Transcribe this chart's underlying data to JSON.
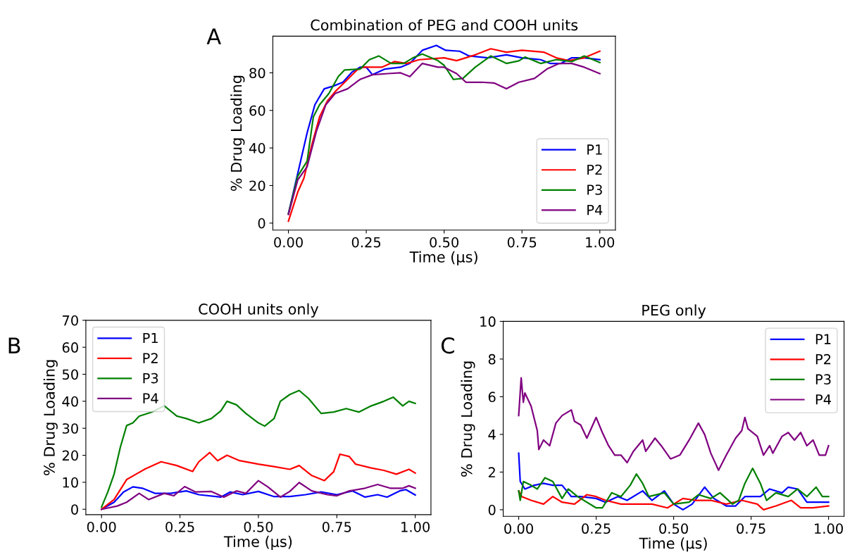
{
  "chart_data": [
    {
      "type": "line",
      "title": "Combination of PEG and COOH units",
      "xlabel": "Time (µs)",
      "ylabel": "% Drug Loading",
      "annotations": [
        "A"
      ],
      "xlim": [
        -0.05,
        1.05
      ],
      "ylim": [
        -3.7,
        99.5
      ],
      "xticks": [
        {
          "value": 0,
          "label": "0.00"
        },
        {
          "value": 0.25,
          "label": "0.25"
        },
        {
          "value": 0.5,
          "label": "0.50"
        },
        {
          "value": 0.75,
          "label": "0.75"
        },
        {
          "value": 1,
          "label": "1.00"
        }
      ],
      "yticks": [
        0,
        20,
        40,
        60,
        80
      ],
      "grid": false,
      "legend": "bottom right",
      "series": [
        {
          "name": "P1",
          "color": "#0000ff",
          "x": [
            0,
            0.03,
            0.06,
            0.085,
            0.115,
            0.145,
            0.175,
            0.205,
            0.23,
            0.25,
            0.27,
            0.31,
            0.36,
            0.39,
            0.43,
            0.475,
            0.505,
            0.55,
            0.58,
            0.64,
            0.7,
            0.75,
            0.81,
            0.84,
            0.875,
            0.91,
            0.95,
            1.0
          ],
          "values": [
            5,
            26.5,
            48,
            63,
            71.5,
            73,
            75,
            80.5,
            83,
            83,
            79,
            82,
            83,
            85,
            92,
            94.6,
            92,
            91.5,
            89,
            88,
            89.6,
            88,
            87,
            85,
            85,
            88,
            88,
            87
          ]
        },
        {
          "name": "P2",
          "color": "#ff0000",
          "x": [
            0,
            0.03,
            0.05,
            0.075,
            0.1,
            0.125,
            0.15,
            0.19,
            0.22,
            0.24,
            0.3,
            0.34,
            0.38,
            0.42,
            0.5,
            0.54,
            0.6,
            0.65,
            0.7,
            0.75,
            0.82,
            0.86,
            0.9,
            0.95,
            1.0
          ],
          "values": [
            1,
            16.5,
            24,
            41.5,
            56.5,
            65,
            70,
            76.5,
            81.5,
            83,
            83,
            86,
            85,
            87,
            88,
            86.5,
            89.6,
            92.8,
            91,
            92,
            91,
            88,
            86.5,
            88,
            91.5
          ]
        },
        {
          "name": "P3",
          "color": "#008000",
          "x": [
            0,
            0.03,
            0.06,
            0.08,
            0.1,
            0.13,
            0.16,
            0.18,
            0.23,
            0.26,
            0.29,
            0.33,
            0.37,
            0.4,
            0.43,
            0.48,
            0.5,
            0.53,
            0.56,
            0.6,
            0.65,
            0.7,
            0.74,
            0.76,
            0.81,
            0.86,
            0.91,
            0.95,
            1.0
          ],
          "values": [
            5,
            25,
            33,
            56.5,
            63,
            69,
            78,
            81.5,
            82,
            87,
            89,
            85,
            85,
            88,
            90,
            86.5,
            84,
            76.5,
            77,
            83,
            89,
            85,
            86.4,
            88.4,
            85,
            87,
            86,
            89,
            85.5
          ]
        },
        {
          "name": "P4",
          "color": "#800080",
          "x": [
            0,
            0.03,
            0.06,
            0.09,
            0.12,
            0.15,
            0.19,
            0.23,
            0.27,
            0.32,
            0.36,
            0.39,
            0.43,
            0.48,
            0.5,
            0.54,
            0.57,
            0.62,
            0.66,
            0.7,
            0.74,
            0.79,
            0.83,
            0.87,
            0.91,
            0.95,
            1.0
          ],
          "values": [
            4.6,
            23,
            30,
            49,
            63,
            69,
            71.5,
            76.5,
            79,
            79.6,
            80,
            78,
            85,
            83,
            83,
            79.6,
            75,
            75,
            74.6,
            71.5,
            75,
            77,
            82,
            85,
            85,
            83,
            79.6
          ]
        }
      ]
    },
    {
      "type": "line",
      "title": "COOH units only",
      "xlabel": "Time (µs)",
      "ylabel": "% Drug Loading",
      "annotations": [
        "B"
      ],
      "xlim": [
        -0.05,
        1.05
      ],
      "ylim": [
        -2,
        70
      ],
      "xticks": [
        {
          "value": 0,
          "label": "0.00"
        },
        {
          "value": 0.25,
          "label": "0.25"
        },
        {
          "value": 0.5,
          "label": "0.50"
        },
        {
          "value": 0.75,
          "label": "0.75"
        },
        {
          "value": 1,
          "label": "1.00"
        }
      ],
      "yticks": [
        0,
        10,
        20,
        30,
        40,
        50,
        60,
        70
      ],
      "grid": false,
      "legend": "top left",
      "series": [
        {
          "name": "P1",
          "color": "#0000ff",
          "x": [
            0,
            0.04,
            0.07,
            0.1,
            0.13,
            0.17,
            0.22,
            0.27,
            0.31,
            0.38,
            0.41,
            0.45,
            0.5,
            0.55,
            0.6,
            0.65,
            0.7,
            0.75,
            0.8,
            0.84,
            0.88,
            0.91,
            0.95,
            0.97,
            1.0
          ],
          "values": [
            0,
            2.6,
            6.4,
            8.3,
            7.8,
            5.9,
            5.9,
            6.8,
            5.4,
            4.5,
            6.4,
            5.4,
            6.6,
            4.7,
            4.7,
            5.4,
            6.4,
            5.4,
            6.8,
            4.5,
            5.4,
            4.5,
            6.8,
            7.3,
            5.3
          ]
        },
        {
          "name": "P2",
          "color": "#ff0000",
          "x": [
            0,
            0.04,
            0.08,
            0.11,
            0.14,
            0.19,
            0.24,
            0.29,
            0.31,
            0.345,
            0.37,
            0.4,
            0.44,
            0.5,
            0.55,
            0.6,
            0.63,
            0.67,
            0.71,
            0.74,
            0.76,
            0.79,
            0.81,
            0.86,
            0.9,
            0.94,
            0.98,
            1.0
          ],
          "values": [
            0,
            3.6,
            11,
            13,
            15,
            17.6,
            16.2,
            14,
            17.6,
            21,
            18,
            20,
            18,
            16.7,
            15.8,
            14.8,
            16.2,
            12.5,
            10.6,
            13.9,
            20.4,
            19.5,
            16.7,
            15.3,
            14.4,
            13,
            14.8,
            13.4
          ]
        },
        {
          "name": "P3",
          "color": "#008000",
          "x": [
            0,
            0.02,
            0.04,
            0.06,
            0.08,
            0.1,
            0.12,
            0.16,
            0.2,
            0.24,
            0.27,
            0.31,
            0.35,
            0.38,
            0.4,
            0.43,
            0.46,
            0.5,
            0.52,
            0.55,
            0.57,
            0.6,
            0.63,
            0.66,
            0.7,
            0.74,
            0.78,
            0.82,
            0.86,
            0.9,
            0.93,
            0.96,
            0.98,
            1.0
          ],
          "values": [
            0.8,
            6.4,
            13,
            23,
            31,
            32,
            34.5,
            36,
            38.3,
            34.5,
            33.6,
            32,
            33.6,
            36.4,
            40,
            38.7,
            35.5,
            32,
            30.8,
            33.6,
            40,
            42.5,
            44,
            41,
            35.5,
            36,
            37.3,
            36,
            38.3,
            40,
            41.5,
            38.3,
            40,
            39.2
          ]
        },
        {
          "name": "P4",
          "color": "#800080",
          "x": [
            0,
            0.05,
            0.08,
            0.12,
            0.15,
            0.2,
            0.23,
            0.265,
            0.3,
            0.35,
            0.39,
            0.43,
            0.46,
            0.5,
            0.53,
            0.57,
            0.6,
            0.63,
            0.67,
            0.72,
            0.75,
            0.79,
            0.84,
            0.88,
            0.92,
            0.96,
            0.98,
            1.0
          ],
          "values": [
            0,
            1.2,
            2.6,
            5.9,
            3.6,
            5.9,
            5,
            8.4,
            6.4,
            6.6,
            4.5,
            6.8,
            5.9,
            10.6,
            8.3,
            4.5,
            6.6,
            9.9,
            6.8,
            5.4,
            5,
            6.8,
            7.8,
            9.2,
            7.8,
            7.8,
            8.7,
            7.8
          ]
        }
      ]
    },
    {
      "type": "line",
      "title": "PEG only",
      "xlabel": "Time (µs)",
      "ylabel": "% Drug Loading",
      "annotations": [
        "C"
      ],
      "xlim": [
        -0.05,
        1.05
      ],
      "ylim": [
        -0.35,
        10
      ],
      "xticks": [
        {
          "value": 0,
          "label": "0.00"
        },
        {
          "value": 0.25,
          "label": "0.25"
        },
        {
          "value": 0.5,
          "label": "0.50"
        },
        {
          "value": 0.75,
          "label": "0.75"
        },
        {
          "value": 1,
          "label": "1.00"
        }
      ],
      "yticks": [
        0,
        2,
        4,
        6,
        8,
        10
      ],
      "grid": false,
      "legend": "top right",
      "series": [
        {
          "name": "P1",
          "color": "#0000ff",
          "x": [
            0,
            0.005,
            0.02,
            0.05,
            0.08,
            0.11,
            0.14,
            0.17,
            0.2,
            0.25,
            0.28,
            0.32,
            0.35,
            0.4,
            0.43,
            0.47,
            0.5,
            0.53,
            0.56,
            0.6,
            0.63,
            0.67,
            0.7,
            0.73,
            0.78,
            0.81,
            0.85,
            0.87,
            0.9,
            0.93,
            0.96,
            1.0
          ],
          "values": [
            3.0,
            1.5,
            1.1,
            1.3,
            1.4,
            1.3,
            1.3,
            0.7,
            0.7,
            0.6,
            0.4,
            0.7,
            0.5,
            1.0,
            0.5,
            1.0,
            0.3,
            0.0,
            0.3,
            1.2,
            0.6,
            0.2,
            0.2,
            0.7,
            0.7,
            1.1,
            0.9,
            1.2,
            1.1,
            0.4,
            0.4,
            0.4
          ]
        },
        {
          "name": "P2",
          "color": "#ff0000",
          "x": [
            0,
            0.01,
            0.04,
            0.08,
            0.11,
            0.14,
            0.18,
            0.22,
            0.25,
            0.28,
            0.33,
            0.38,
            0.43,
            0.48,
            0.53,
            0.57,
            0.62,
            0.67,
            0.72,
            0.77,
            0.79,
            0.83,
            0.88,
            0.91,
            0.95,
            1.0
          ],
          "values": [
            1.0,
            0.7,
            0.5,
            0.3,
            0.7,
            0.4,
            0.3,
            0.8,
            0.7,
            0.5,
            0.3,
            0.3,
            0.3,
            0.1,
            0.6,
            0.5,
            0.5,
            0.3,
            0.5,
            0.3,
            0.0,
            0.2,
            0.5,
            0.1,
            0.1,
            0.2
          ]
        },
        {
          "name": "P3",
          "color": "#008000",
          "x": [
            0,
            0.005,
            0.015,
            0.04,
            0.06,
            0.085,
            0.11,
            0.14,
            0.16,
            0.19,
            0.25,
            0.27,
            0.3,
            0.33,
            0.36,
            0.38,
            0.4,
            0.42,
            0.47,
            0.5,
            0.55,
            0.58,
            0.62,
            0.65,
            0.69,
            0.71,
            0.73,
            0.755,
            0.78,
            0.8,
            0.83,
            0.87,
            0.9,
            0.93,
            0.96,
            0.98,
            1.0
          ],
          "values": [
            1.0,
            0.5,
            1.5,
            1.3,
            1.1,
            1.7,
            1.5,
            0.6,
            1.1,
            0.7,
            0.1,
            0.1,
            0.9,
            0.7,
            1.3,
            1.9,
            1.4,
            0.7,
            0.9,
            0.3,
            0.4,
            0.8,
            0.6,
            0.9,
            0.3,
            0.5,
            1.4,
            2.2,
            1.4,
            0.5,
            0.9,
            0.7,
            1.1,
            0.7,
            1.2,
            0.7,
            0.7
          ]
        },
        {
          "name": "P4",
          "color": "#800080",
          "x": [
            0,
            0.008,
            0.015,
            0.02,
            0.04,
            0.06,
            0.065,
            0.08,
            0.1,
            0.12,
            0.14,
            0.17,
            0.18,
            0.2,
            0.22,
            0.25,
            0.27,
            0.29,
            0.31,
            0.33,
            0.35,
            0.37,
            0.4,
            0.41,
            0.44,
            0.46,
            0.49,
            0.52,
            0.55,
            0.58,
            0.6,
            0.62,
            0.645,
            0.67,
            0.7,
            0.72,
            0.73,
            0.74,
            0.77,
            0.79,
            0.81,
            0.82,
            0.85,
            0.87,
            0.89,
            0.91,
            0.93,
            0.95,
            0.97,
            0.99,
            1.0
          ],
          "values": [
            5.0,
            7.0,
            5.7,
            6.2,
            5.5,
            4.2,
            3.2,
            3.7,
            3.4,
            4.6,
            5.0,
            5.3,
            4.7,
            4.5,
            3.8,
            4.9,
            4.1,
            3.4,
            2.9,
            2.9,
            2.5,
            3.1,
            3.7,
            3.1,
            3.8,
            3.4,
            2.7,
            2.9,
            3.7,
            4.6,
            4.0,
            3.0,
            2.1,
            2.9,
            3.8,
            4.2,
            4.9,
            4.3,
            3.9,
            2.9,
            3.4,
            3.0,
            3.9,
            4.1,
            3.7,
            4.1,
            3.4,
            3.7,
            2.9,
            2.9,
            3.4
          ]
        }
      ]
    }
  ]
}
